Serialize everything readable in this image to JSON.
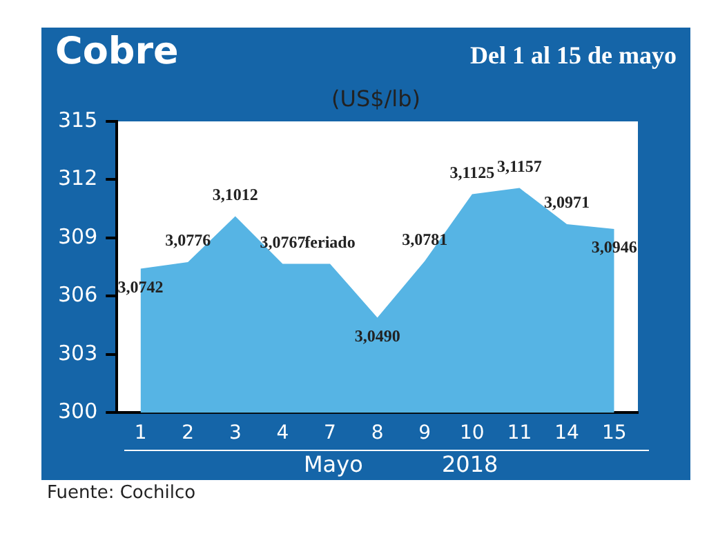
{
  "chart_data": {
    "type": "area",
    "title": "Cobre",
    "subtitle": "Del 1 al 15 de mayo",
    "ylabel": "(US$/lb)",
    "xlabel": "Mayo",
    "categories": [
      "1",
      "2",
      "3",
      "4",
      "7",
      "8",
      "9",
      "10",
      "11",
      "14",
      "15"
    ],
    "values": [
      307.42,
      307.76,
      310.12,
      307.67,
      307.67,
      304.9,
      307.81,
      311.25,
      311.57,
      309.71,
      309.46
    ],
    "value_labels": [
      "3,0742",
      "3,0776",
      "3,1012",
      "3,0767",
      "feriado",
      "3,0490",
      "3,0781",
      "3,1125",
      "3,1157",
      "3,0971",
      "3,0946"
    ],
    "color": "#56b4e4",
    "ylim": [
      300,
      315
    ],
    "yticks": [
      300,
      303,
      306,
      309,
      312,
      315
    ],
    "grid": false,
    "legend": false,
    "annotations": [
      "2018",
      "Fuente: Cochilco"
    ]
  }
}
